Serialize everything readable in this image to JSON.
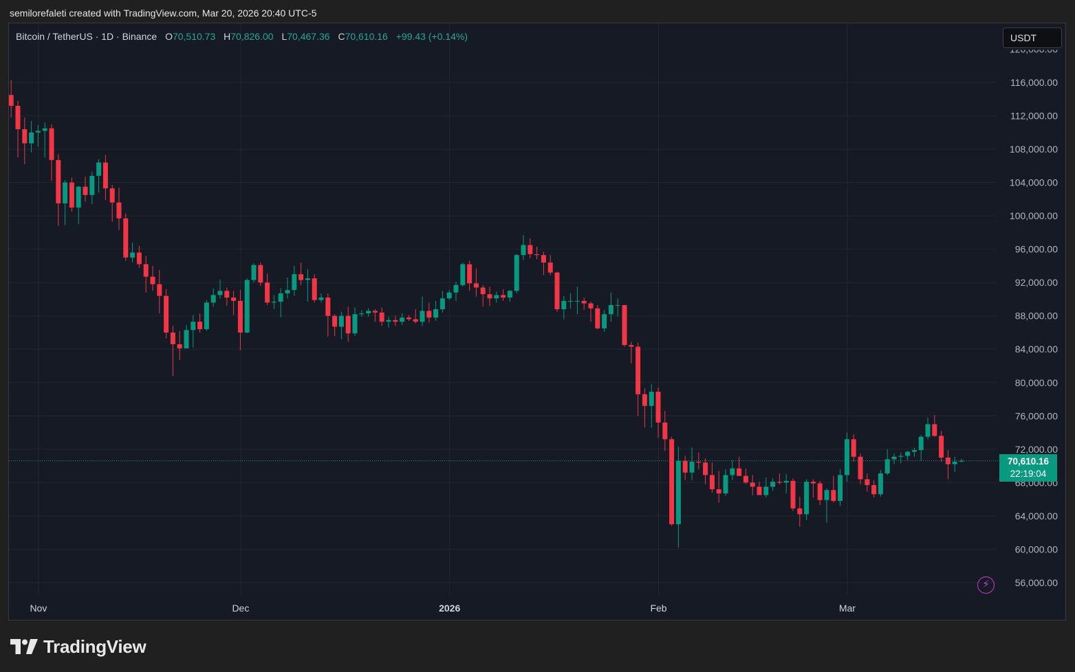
{
  "caption": "semilorefaleti created with TradingView.com, Mar 20, 2026 20:40 UTC-5",
  "legend": {
    "symbol": "Bitcoin / TetherUS · 1D · Binance",
    "o_label": "O",
    "o_value": "70,510.73",
    "h_label": "H",
    "h_value": "70,826.00",
    "l_label": "L",
    "l_value": "70,467.36",
    "c_label": "C",
    "c_value": "70,610.16",
    "change": "+99.43 (+0.14%)"
  },
  "currency_button": "USDT",
  "last_price": {
    "price": "70,610.16",
    "countdown": "22:19:04"
  },
  "brand": "TradingView",
  "colors": {
    "up": "#089981",
    "down": "#f23645",
    "bg": "#161a25",
    "grid": "#232734",
    "axis_text": "#b2b5be"
  },
  "icons": {
    "bolt": "lightning-icon",
    "logo": "tradingview-logo-icon"
  },
  "chart_data": {
    "type": "candlestick",
    "title": "Bitcoin / TetherUS · 1D · Binance",
    "interval": "1D",
    "ylim": [
      55000,
      120000
    ],
    "y_ticks": [
      "116,000.00",
      "112,000.00",
      "108,000.00",
      "104,000.00",
      "100,000.00",
      "96,000.00",
      "92,000.00",
      "88,000.00",
      "84,000.00",
      "80,000.00",
      "76,000.00",
      "72,000.00",
      "68,000.00",
      "64,000.00",
      "60,000.00",
      "56,000.00"
    ],
    "y_tick_values": [
      116000,
      112000,
      108000,
      104000,
      100000,
      96000,
      92000,
      88000,
      84000,
      80000,
      76000,
      72000,
      68000,
      64000,
      60000,
      56000
    ],
    "x_ticks": [
      {
        "label": "Nov",
        "index": 4,
        "bold": false
      },
      {
        "label": "Dec",
        "index": 34,
        "bold": false
      },
      {
        "label": "2026",
        "index": 65,
        "bold": true
      },
      {
        "label": "Feb",
        "index": 96,
        "bold": false
      },
      {
        "label": "Mar",
        "index": 124,
        "bold": false
      }
    ],
    "grid": true,
    "last_price": 70610.16,
    "candles": [
      [
        114500,
        116300,
        111800,
        113200
      ],
      [
        113200,
        113800,
        107000,
        110400
      ],
      [
        110400,
        111800,
        106200,
        108700
      ],
      [
        108700,
        111400,
        107600,
        110000
      ],
      [
        110000,
        110900,
        108300,
        110200
      ],
      [
        110200,
        111200,
        107000,
        110500
      ],
      [
        110500,
        111000,
        104200,
        106700
      ],
      [
        106700,
        107400,
        98800,
        101500
      ],
      [
        101500,
        104300,
        98900,
        104000
      ],
      [
        104000,
        104600,
        100500,
        101000
      ],
      [
        101000,
        103600,
        99000,
        103500
      ],
      [
        103500,
        104700,
        101700,
        102500
      ],
      [
        102500,
        105300,
        101400,
        104800
      ],
      [
        104800,
        106800,
        102800,
        106400
      ],
      [
        106400,
        107300,
        101900,
        103300
      ],
      [
        103300,
        103700,
        99300,
        101600
      ],
      [
        101600,
        103400,
        98300,
        99700
      ],
      [
        99700,
        100300,
        94600,
        95000
      ],
      [
        95000,
        96800,
        94400,
        95600
      ],
      [
        95600,
        96400,
        93800,
        94200
      ],
      [
        94200,
        95200,
        90800,
        92700
      ],
      [
        92700,
        94000,
        91000,
        91800
      ],
      [
        91800,
        93500,
        88300,
        90400
      ],
      [
        90400,
        91200,
        85300,
        86000
      ],
      [
        86000,
        86800,
        80800,
        84600
      ],
      [
        84600,
        86200,
        82700,
        84100
      ],
      [
        84100,
        86900,
        84100,
        86300
      ],
      [
        86300,
        88100,
        84200,
        87300
      ],
      [
        87300,
        88300,
        86000,
        86400
      ],
      [
        86400,
        89900,
        86200,
        89600
      ],
      [
        89600,
        91300,
        89100,
        90500
      ],
      [
        90500,
        92300,
        90100,
        91000
      ],
      [
        91000,
        91400,
        89200,
        90200
      ],
      [
        90200,
        91000,
        88100,
        89800
      ],
      [
        89800,
        91100,
        83900,
        86000
      ],
      [
        86000,
        92500,
        85900,
        92300
      ],
      [
        92300,
        94300,
        92000,
        94100
      ],
      [
        94100,
        94400,
        91600,
        92000
      ],
      [
        92000,
        93100,
        89300,
        89600
      ],
      [
        89600,
        90500,
        88800,
        89700
      ],
      [
        89700,
        91300,
        87800,
        90700
      ],
      [
        90700,
        92600,
        90100,
        91100
      ],
      [
        91100,
        94000,
        90400,
        93000
      ],
      [
        93000,
        94400,
        91700,
        92300
      ],
      [
        92300,
        93600,
        89700,
        92500
      ],
      [
        92500,
        93000,
        89600,
        89900
      ],
      [
        89900,
        90700,
        89600,
        90200
      ],
      [
        90200,
        90700,
        85500,
        88000
      ],
      [
        88000,
        88200,
        85600,
        86700
      ],
      [
        86700,
        88500,
        85200,
        88000
      ],
      [
        88000,
        89100,
        84900,
        85900
      ],
      [
        85900,
        89000,
        85600,
        88200
      ],
      [
        88200,
        88700,
        87900,
        88300
      ],
      [
        88300,
        88900,
        87900,
        88600
      ],
      [
        88600,
        88800,
        87300,
        88400
      ],
      [
        88400,
        89000,
        86800,
        87300
      ],
      [
        87300,
        87900,
        86600,
        87500
      ],
      [
        87500,
        88000,
        86800,
        87300
      ],
      [
        87300,
        88300,
        86900,
        87800
      ],
      [
        87800,
        88100,
        87400,
        87600
      ],
      [
        87600,
        88800,
        87100,
        87300
      ],
      [
        87300,
        90300,
        86800,
        88600
      ],
      [
        88600,
        89600,
        87200,
        87800
      ],
      [
        87800,
        89800,
        87400,
        88800
      ],
      [
        88800,
        91000,
        88400,
        90100
      ],
      [
        90100,
        91100,
        89900,
        90800
      ],
      [
        90800,
        92100,
        89800,
        91700
      ],
      [
        91700,
        94400,
        91500,
        94200
      ],
      [
        94200,
        94600,
        91000,
        91900
      ],
      [
        91900,
        93700,
        90300,
        91400
      ],
      [
        91400,
        91700,
        89100,
        90600
      ],
      [
        90600,
        91500,
        89200,
        90100
      ],
      [
        90100,
        90900,
        89600,
        90500
      ],
      [
        90500,
        91200,
        89800,
        90200
      ],
      [
        90200,
        91100,
        89700,
        91000
      ],
      [
        91000,
        95400,
        90700,
        95300
      ],
      [
        95300,
        97700,
        94700,
        96500
      ],
      [
        96500,
        97300,
        94900,
        95400
      ],
      [
        95400,
        96300,
        94800,
        95300
      ],
      [
        95300,
        95700,
        92900,
        94400
      ],
      [
        94400,
        95300,
        92900,
        93200
      ],
      [
        93200,
        93300,
        88500,
        88800
      ],
      [
        88800,
        90400,
        87600,
        89800
      ],
      [
        89800,
        90700,
        88900,
        89800
      ],
      [
        89800,
        91500,
        88200,
        89800
      ],
      [
        89800,
        90200,
        88700,
        89500
      ],
      [
        89500,
        89700,
        87300,
        88900
      ],
      [
        88900,
        89300,
        86400,
        86500
      ],
      [
        86500,
        88700,
        86100,
        88200
      ],
      [
        88200,
        90800,
        87300,
        89300
      ],
      [
        89300,
        90100,
        87900,
        89300
      ],
      [
        89300,
        89300,
        84300,
        84500
      ],
      [
        84500,
        84900,
        82300,
        84300
      ],
      [
        84300,
        84800,
        76000,
        78600
      ],
      [
        78600,
        79300,
        74600,
        77200
      ],
      [
        77200,
        79800,
        74600,
        78900
      ],
      [
        78900,
        79400,
        73400,
        75200
      ],
      [
        75200,
        76600,
        71800,
        73200
      ],
      [
        73200,
        73500,
        62800,
        63000
      ],
      [
        63000,
        72300,
        60200,
        70600
      ],
      [
        70600,
        71200,
        68300,
        69200
      ],
      [
        69200,
        72200,
        68300,
        70500
      ],
      [
        70500,
        71600,
        69600,
        70400
      ],
      [
        70400,
        70900,
        67800,
        68900
      ],
      [
        68900,
        70400,
        66800,
        67200
      ],
      [
        67200,
        69400,
        65600,
        66700
      ],
      [
        66700,
        69600,
        66400,
        68900
      ],
      [
        68900,
        70700,
        68300,
        69700
      ],
      [
        69700,
        71100,
        68800,
        68800
      ],
      [
        68800,
        69700,
        67800,
        68000
      ],
      [
        68000,
        68900,
        66500,
        67500
      ],
      [
        67500,
        68100,
        66800,
        66500
      ],
      [
        66500,
        68600,
        66200,
        67500
      ],
      [
        67500,
        68500,
        67000,
        68100
      ],
      [
        68100,
        69100,
        67800,
        68000
      ],
      [
        68000,
        69000,
        66700,
        68200
      ],
      [
        68200,
        68500,
        64600,
        64900
      ],
      [
        64900,
        66300,
        62700,
        64200
      ],
      [
        64200,
        68400,
        63500,
        68100
      ],
      [
        68100,
        68400,
        66200,
        67900
      ],
      [
        67900,
        68200,
        65300,
        65900
      ],
      [
        65900,
        67300,
        63200,
        67100
      ],
      [
        67100,
        68800,
        65600,
        65800
      ],
      [
        65800,
        69600,
        65200,
        68900
      ],
      [
        68900,
        74000,
        68100,
        73200
      ],
      [
        73200,
        73800,
        70500,
        71100
      ],
      [
        71100,
        71500,
        67800,
        68400
      ],
      [
        68400,
        69100,
        66900,
        67700
      ],
      [
        67700,
        68300,
        66200,
        66600
      ],
      [
        66600,
        69500,
        66300,
        69100
      ],
      [
        69100,
        72000,
        68900,
        70800
      ],
      [
        70800,
        71500,
        70200,
        71100
      ],
      [
        71100,
        71600,
        70300,
        71200
      ],
      [
        71200,
        71800,
        70700,
        71700
      ],
      [
        71700,
        72200,
        71100,
        71900
      ],
      [
        71900,
        73700,
        70600,
        73500
      ],
      [
        73500,
        75800,
        73200,
        75000
      ],
      [
        75000,
        76100,
        73500,
        73600
      ],
      [
        73600,
        74200,
        70500,
        71000
      ],
      [
        71000,
        71900,
        68400,
        70200
      ],
      [
        70200,
        71100,
        69300,
        70500
      ],
      [
        70510.73,
        70826,
        70467.36,
        70610.16
      ]
    ]
  }
}
